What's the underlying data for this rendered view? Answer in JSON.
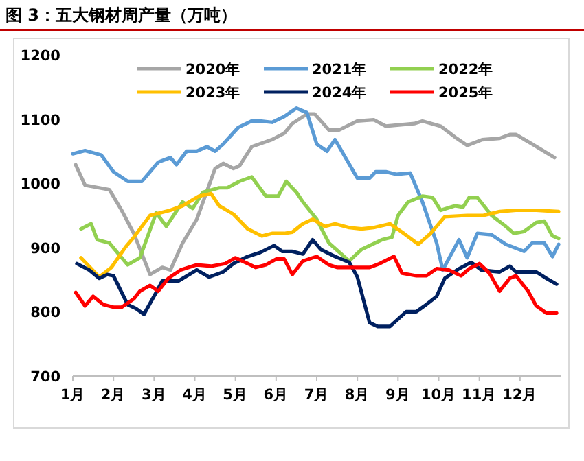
{
  "chart_data": {
    "type": "line",
    "title": "图 3：五大钢材周产量（万吨）",
    "xlim": [
      1,
      13
    ],
    "xticks": [
      {
        "value": 1,
        "label": "1月"
      },
      {
        "value": 2,
        "label": "2月"
      },
      {
        "value": 3,
        "label": "3月"
      },
      {
        "value": 4,
        "label": "4月"
      },
      {
        "value": 5,
        "label": "5月"
      },
      {
        "value": 6,
        "label": "6月"
      },
      {
        "value": 7,
        "label": "7月"
      },
      {
        "value": 8,
        "label": "8月"
      },
      {
        "value": 9,
        "label": "9月"
      },
      {
        "value": 10,
        "label": "10月"
      },
      {
        "value": 11,
        "label": "11月"
      },
      {
        "value": 12,
        "label": "12月"
      }
    ],
    "ylim": [
      700,
      1200
    ],
    "yticks": [
      700,
      800,
      900,
      1000,
      1100,
      1200
    ],
    "legend": "top",
    "series": [
      {
        "name": "2020年",
        "color": "#a6a6a6",
        "x": [
          1.07,
          1.3,
          1.9,
          2.2,
          2.5,
          2.9,
          3.2,
          3.4,
          3.7,
          4.05,
          4.5,
          4.7,
          4.95,
          5.1,
          5.4,
          5.9,
          6.2,
          6.4,
          6.76,
          6.95,
          7.3,
          7.55,
          8.0,
          8.4,
          8.7,
          9.4,
          9.6,
          10.05,
          10.4,
          10.7,
          11.07,
          11.5,
          11.75,
          11.9,
          12.3,
          12.85
        ],
        "values": [
          1029,
          997,
          990,
          958,
          922,
          858,
          869,
          865,
          907,
          944,
          1023,
          1031,
          1023,
          1027,
          1057,
          1068,
          1078,
          1093,
          1108,
          1108,
          1083,
          1083,
          1097,
          1099,
          1089,
          1093,
          1097,
          1089,
          1072,
          1059,
          1068,
          1070,
          1076,
          1076,
          1061,
          1040
        ]
      },
      {
        "name": "2021年",
        "color": "#5b9bd5",
        "x": [
          1.0,
          1.3,
          1.7,
          2.0,
          2.35,
          2.7,
          2.9,
          3.1,
          3.4,
          3.55,
          3.8,
          4.05,
          4.3,
          4.5,
          4.7,
          5.07,
          5.4,
          5.6,
          5.9,
          6.2,
          6.5,
          6.76,
          7.0,
          7.25,
          7.45,
          8.0,
          8.3,
          8.45,
          8.7,
          8.95,
          9.3,
          9.6,
          9.95,
          10.1,
          10.5,
          10.7,
          10.95,
          11.3,
          11.65,
          12.1,
          12.3,
          12.6,
          12.8,
          12.95
        ],
        "values": [
          1046,
          1051,
          1044,
          1018,
          1003,
          1003,
          1018,
          1033,
          1040,
          1029,
          1050,
          1050,
          1057,
          1050,
          1061,
          1087,
          1097,
          1097,
          1095,
          1104,
          1117,
          1110,
          1061,
          1050,
          1068,
          1008,
          1008,
          1018,
          1018,
          1014,
          1016,
          971,
          907,
          865,
          912,
          884,
          922,
          920,
          905,
          894,
          907,
          907,
          886,
          905
        ]
      },
      {
        "name": "2022年",
        "color": "#92d050",
        "x": [
          1.2,
          1.45,
          1.6,
          1.9,
          2.35,
          2.65,
          3.05,
          3.3,
          3.7,
          3.95,
          4.2,
          4.6,
          4.8,
          5.1,
          5.4,
          5.75,
          6.05,
          6.25,
          6.5,
          6.66,
          7.0,
          7.3,
          7.8,
          8.1,
          8.6,
          8.85,
          9.0,
          9.25,
          9.6,
          9.85,
          10.05,
          10.4,
          10.6,
          10.75,
          10.95,
          11.3,
          11.65,
          11.85,
          12.1,
          12.4,
          12.6,
          12.8,
          12.95
        ],
        "values": [
          929,
          937,
          912,
          907,
          873,
          884,
          954,
          933,
          971,
          961,
          986,
          993,
          993,
          1003,
          1010,
          980,
          980,
          1003,
          986,
          971,
          944,
          907,
          879,
          897,
          912,
          916,
          950,
          971,
          980,
          978,
          958,
          965,
          963,
          978,
          978,
          950,
          933,
          922,
          925,
          939,
          941,
          918,
          914
        ]
      },
      {
        "name": "2023年",
        "color": "#ffc000",
        "x": [
          1.2,
          1.65,
          1.95,
          2.3,
          2.5,
          2.9,
          3.4,
          3.7,
          4.1,
          4.4,
          4.6,
          4.95,
          5.3,
          5.65,
          5.9,
          6.2,
          6.4,
          6.66,
          6.9,
          7.2,
          7.45,
          7.8,
          8.1,
          8.4,
          8.8,
          9.1,
          9.5,
          9.8,
          10.15,
          10.7,
          11.1,
          11.5,
          11.9,
          12.4,
          12.95
        ],
        "values": [
          884,
          854,
          869,
          901,
          916,
          950,
          958,
          965,
          980,
          984,
          965,
          952,
          929,
          918,
          922,
          922,
          924,
          937,
          944,
          933,
          937,
          931,
          929,
          931,
          937,
          924,
          905,
          922,
          948,
          950,
          950,
          956,
          958,
          958,
          956
        ]
      },
      {
        "name": "2024年",
        "color": "#002060",
        "x": [
          1.1,
          1.4,
          1.65,
          1.85,
          2.0,
          2.35,
          2.55,
          2.75,
          3.05,
          3.2,
          3.6,
          4.05,
          4.35,
          4.7,
          4.95,
          5.3,
          5.6,
          5.95,
          6.15,
          6.4,
          6.66,
          6.9,
          7.1,
          7.45,
          7.8,
          8.0,
          8.3,
          8.5,
          8.8,
          9.2,
          9.45,
          9.65,
          9.95,
          10.15,
          10.5,
          10.8,
          11.05,
          11.5,
          11.75,
          11.9,
          12.4,
          12.65,
          12.9
        ],
        "values": [
          875,
          865,
          852,
          858,
          856,
          811,
          805,
          796,
          830,
          848,
          848,
          865,
          854,
          862,
          875,
          886,
          892,
          903,
          894,
          894,
          890,
          912,
          897,
          886,
          877,
          854,
          783,
          777,
          777,
          800,
          800,
          809,
          824,
          852,
          867,
          877,
          865,
          862,
          871,
          862,
          862,
          852,
          843
        ]
      },
      {
        "name": "2025年",
        "color": "#ff0000",
        "x": [
          1.07,
          1.3,
          1.5,
          1.75,
          2.0,
          2.2,
          2.5,
          2.65,
          2.9,
          3.1,
          3.35,
          3.65,
          4.05,
          4.4,
          4.75,
          5.0,
          5.3,
          5.5,
          5.75,
          6.0,
          6.2,
          6.4,
          6.66,
          7.0,
          7.3,
          7.5,
          8.0,
          8.3,
          8.55,
          8.9,
          9.1,
          9.45,
          9.7,
          9.95,
          10.25,
          10.55,
          10.75,
          11.0,
          11.25,
          11.5,
          11.75,
          11.9,
          12.2,
          12.4,
          12.65,
          12.9
        ],
        "values": [
          830,
          809,
          824,
          811,
          807,
          807,
          820,
          832,
          841,
          832,
          852,
          865,
          873,
          871,
          875,
          884,
          875,
          869,
          873,
          882,
          882,
          858,
          879,
          886,
          873,
          869,
          869,
          869,
          875,
          886,
          860,
          856,
          856,
          867,
          865,
          856,
          867,
          875,
          860,
          832,
          852,
          856,
          832,
          809,
          798,
          798
        ]
      }
    ]
  }
}
